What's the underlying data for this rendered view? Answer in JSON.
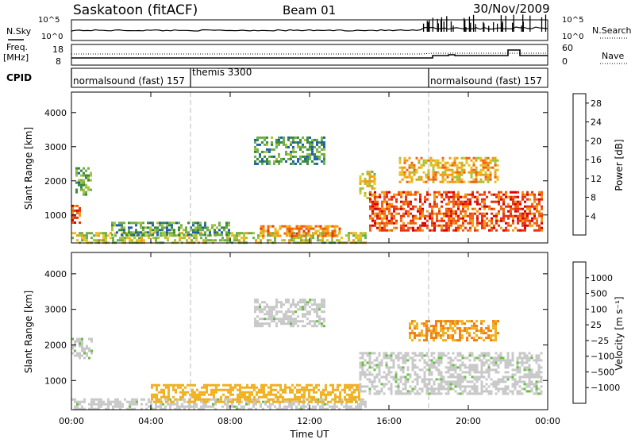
{
  "header": {
    "station": "Saskatoon (fitACF)",
    "beam": "Beam 01",
    "date": "30/Nov/2009"
  },
  "strips": {
    "nsky_label": "N.Sky",
    "nsearch_label": "N.Search",
    "freq_label_1": "Freq.",
    "freq_label_2": "[MHz]",
    "nave_label": "Nave",
    "cpid_label": "CPID",
    "noise_ticks_left": [
      "10^5",
      "10^0"
    ],
    "noise_ticks_right": [
      "10^5",
      "10^0"
    ],
    "freq_ticks": [
      "18",
      "8"
    ],
    "nave_ticks": [
      "60",
      "0"
    ],
    "cpid_segments": [
      {
        "label": "normalsound (fast)",
        "code": "157",
        "start": 0,
        "end": 6
      },
      {
        "label": "themis",
        "code": "3300",
        "start": 6,
        "end": 18
      },
      {
        "label": "normalsound (fast)",
        "code": "157",
        "start": 18,
        "end": 24
      }
    ]
  },
  "axes": {
    "ylabel": "Slant Range [km]",
    "xlabel": "Time UT",
    "y_ticks": [
      "1000",
      "2000",
      "3000",
      "4000"
    ],
    "x_ticks": [
      "00:00",
      "04:00",
      "08:00",
      "12:00",
      "16:00",
      "20:00",
      "00:00"
    ]
  },
  "colorbars": {
    "power": {
      "label": "Power [dB]",
      "ticks": [
        "4",
        "8",
        "12",
        "16",
        "20",
        "24",
        "28"
      ],
      "colors": [
        "#1530e0",
        "#1e5fb0",
        "#3a8a3a",
        "#6cae4a",
        "#a6c23a",
        "#e8c020",
        "#f59a10",
        "#f06010",
        "#e83010",
        "#d80000"
      ]
    },
    "velocity": {
      "label": "Velocity [m s⁻¹]",
      "ticks": [
        "1000",
        "500",
        "100",
        "25",
        "−25",
        "−100",
        "−500",
        "−1000"
      ],
      "colors": [
        "#2050c0",
        "#3a7ab0",
        "#3a8a3a",
        "#66c040",
        "#c8c8c8",
        "#c8c8c8",
        "#f0b020",
        "#f08010",
        "#f04010",
        "#e01010"
      ]
    }
  },
  "chart_data": [
    {
      "type": "heatmap",
      "title": "Power [dB]",
      "xlabel": "Time UT",
      "ylabel": "Slant Range [km]",
      "xlim": [
        0,
        24
      ],
      "ylim": [
        180,
        4600
      ],
      "zlim": [
        0,
        30
      ],
      "regions": [
        {
          "t0": 0.0,
          "t1": 0.4,
          "r0": 800,
          "r1": 1300,
          "z": 24
        },
        {
          "t0": 0.2,
          "t1": 1.0,
          "r0": 1600,
          "r1": 2400,
          "z": 10
        },
        {
          "t0": 0.0,
          "t1": 14.8,
          "r0": 200,
          "r1": 500,
          "z": 14
        },
        {
          "t0": 2.0,
          "t1": 8.0,
          "r0": 450,
          "r1": 800,
          "z": 9
        },
        {
          "t0": 9.5,
          "t1": 13.5,
          "r0": 400,
          "r1": 700,
          "z": 20
        },
        {
          "t0": 9.2,
          "t1": 12.8,
          "r0": 2500,
          "r1": 3300,
          "z": 8
        },
        {
          "t0": 14.5,
          "t1": 15.3,
          "r0": 1500,
          "r1": 2300,
          "z": 16
        },
        {
          "t0": 15.0,
          "t1": 23.7,
          "r0": 550,
          "r1": 1700,
          "z": 24
        },
        {
          "t0": 16.5,
          "t1": 21.5,
          "r0": 2000,
          "r1": 2700,
          "z": 18
        }
      ]
    },
    {
      "type": "heatmap",
      "title": "Velocity [m s⁻¹]",
      "xlabel": "Time UT",
      "ylabel": "Slant Range [km]",
      "xlim": [
        0,
        24
      ],
      "ylim": [
        180,
        4600
      ],
      "zlim": [
        -1000,
        1000
      ],
      "regions": [
        {
          "t0": 0.0,
          "t1": 1.0,
          "r0": 1600,
          "r1": 2200,
          "z": 0
        },
        {
          "t0": 0.0,
          "t1": 14.8,
          "r0": 200,
          "r1": 500,
          "z": 0
        },
        {
          "t0": 4.0,
          "t1": 14.5,
          "r0": 400,
          "r1": 900,
          "z": -150
        },
        {
          "t0": 9.2,
          "t1": 12.8,
          "r0": 2500,
          "r1": 3300,
          "z": 0
        },
        {
          "t0": 14.5,
          "t1": 23.7,
          "r0": 600,
          "r1": 1800,
          "z": 0
        },
        {
          "t0": 17.0,
          "t1": 21.5,
          "r0": 2100,
          "r1": 2700,
          "z": -300
        }
      ]
    }
  ]
}
